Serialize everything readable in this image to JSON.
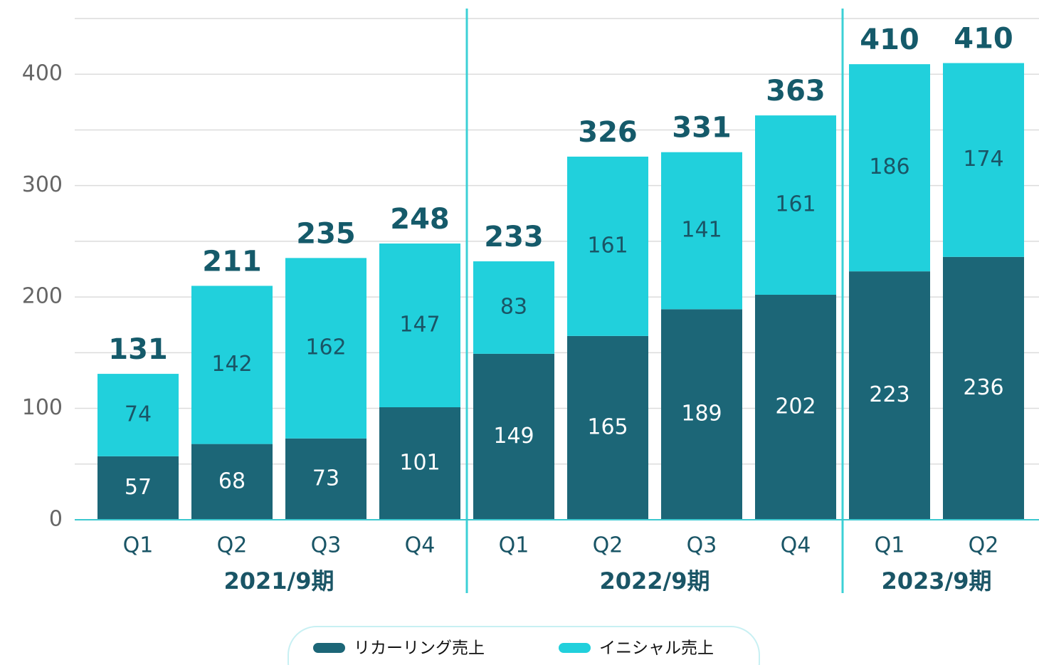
{
  "chart_data": {
    "type": "stacked_bar",
    "groups": [
      {
        "name": "2021/9期",
        "categories": [
          "Q1",
          "Q2",
          "Q3",
          "Q4"
        ]
      },
      {
        "name": "2022/9期",
        "categories": [
          "Q1",
          "Q2",
          "Q3",
          "Q4"
        ]
      },
      {
        "name": "2023/9期",
        "categories": [
          "Q1",
          "Q2"
        ]
      }
    ],
    "series": [
      {
        "name": "リカーリング売上",
        "color": "#1c6677",
        "values": [
          57,
          68,
          73,
          101,
          149,
          165,
          189,
          202,
          223,
          236
        ]
      },
      {
        "name": "イニシャル売上",
        "color": "#21d0dc",
        "values": [
          74,
          142,
          162,
          147,
          83,
          161,
          141,
          161,
          186,
          174
        ]
      }
    ],
    "totals": [
      131,
      211,
      235,
      248,
      233,
      326,
      331,
      363,
      410,
      410
    ],
    "ylim": [
      0,
      450
    ],
    "yticks": [
      0,
      100,
      200,
      300,
      400
    ],
    "minor_yticks": [
      50,
      150,
      250,
      350,
      450
    ],
    "grid": true,
    "legend": "bottom"
  }
}
